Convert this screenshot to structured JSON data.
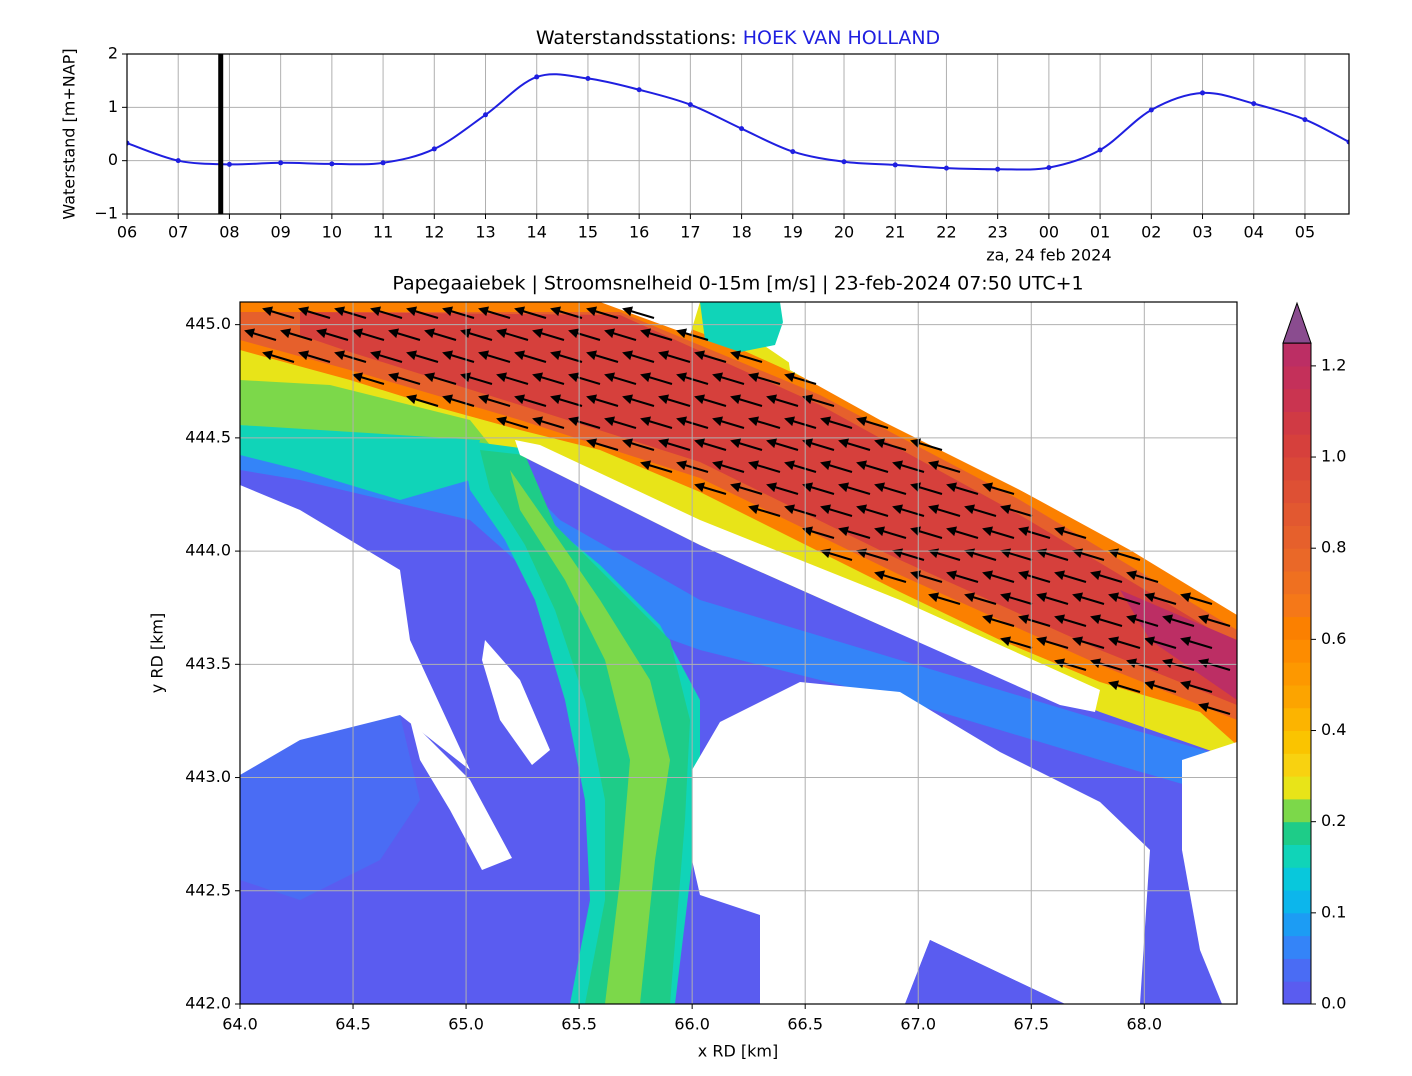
{
  "chart_data": [
    {
      "type": "line",
      "title": "Waterstandsstations:",
      "station": "HOEK VAN HOLLAND",
      "ylabel": "Waterstand [m+NAP]",
      "date_label": "za, 24 feb 2024",
      "color": "#1f1fe0",
      "current_time_x": 1.83,
      "x": [
        0,
        1,
        2,
        3,
        4,
        5,
        6,
        7,
        8,
        9,
        10,
        11,
        12,
        13,
        14,
        15,
        16,
        17,
        18,
        19,
        20,
        21,
        22,
        23,
        23.86
      ],
      "values": [
        0.33,
        0.0,
        -0.07,
        -0.04,
        -0.06,
        -0.04,
        0.22,
        0.86,
        1.57,
        1.54,
        1.33,
        1.05,
        0.6,
        0.17,
        -0.02,
        -0.08,
        -0.14,
        -0.16,
        -0.13,
        0.2,
        0.95,
        1.27,
        1.07,
        0.77,
        0.35
      ],
      "xlim": [
        0,
        23.86
      ],
      "xticks": [
        {
          "value": 0,
          "label": "06"
        },
        {
          "value": 1,
          "label": "07"
        },
        {
          "value": 2,
          "label": "08"
        },
        {
          "value": 3,
          "label": "09"
        },
        {
          "value": 4,
          "label": "10"
        },
        {
          "value": 5,
          "label": "11"
        },
        {
          "value": 6,
          "label": "12"
        },
        {
          "value": 7,
          "label": "13"
        },
        {
          "value": 8,
          "label": "14"
        },
        {
          "value": 9,
          "label": "15"
        },
        {
          "value": 10,
          "label": "16"
        },
        {
          "value": 11,
          "label": "17"
        },
        {
          "value": 12,
          "label": "18"
        },
        {
          "value": 13,
          "label": "19"
        },
        {
          "value": 14,
          "label": "20"
        },
        {
          "value": 15,
          "label": "21"
        },
        {
          "value": 16,
          "label": "22"
        },
        {
          "value": 17,
          "label": "23"
        },
        {
          "value": 18,
          "label": "00"
        },
        {
          "value": 19,
          "label": "01"
        },
        {
          "value": 20,
          "label": "02"
        },
        {
          "value": 21,
          "label": "03"
        },
        {
          "value": 22,
          "label": "04"
        },
        {
          "value": 23,
          "label": "05"
        }
      ],
      "ylim": [
        -1,
        2
      ],
      "yticks": [
        {
          "value": -1,
          "label": "−1"
        },
        0,
        1,
        2
      ],
      "grid": true
    },
    {
      "type": "contour",
      "title": "Papegaaiebek | Stroomsnelheid 0-15m [m/s] | 23-feb-2024 07:50 UTC+1",
      "xlabel": "x RD [km]",
      "ylabel": "y RD [km]",
      "xlim": [
        64,
        68.41
      ],
      "xticks": [
        {
          "value": 64,
          "label": "64.0"
        },
        {
          "value": 64.5,
          "label": "64.5"
        },
        {
          "value": 65,
          "label": "65.0"
        },
        {
          "value": 65.5,
          "label": "65.5"
        },
        {
          "value": 66,
          "label": "66.0"
        },
        {
          "value": 66.5,
          "label": "66.5"
        },
        {
          "value": 67,
          "label": "67.0"
        },
        {
          "value": 67.5,
          "label": "67.5"
        },
        {
          "value": 68,
          "label": "68.0"
        }
      ],
      "ylim": [
        442,
        445.1
      ],
      "yticks": [
        {
          "value": 442,
          "label": "442.0"
        },
        {
          "value": 442.5,
          "label": "442.5"
        },
        {
          "value": 443,
          "label": "443.0"
        },
        {
          "value": 443.5,
          "label": "443.5"
        },
        {
          "value": 444,
          "label": "444.0"
        },
        {
          "value": 444.5,
          "label": "444.5"
        },
        {
          "value": 445,
          "label": "445.0"
        }
      ],
      "grid": true,
      "colorbar": {
        "levels": [
          0,
          0.025,
          0.05,
          0.075,
          0.1,
          0.125,
          0.15,
          0.175,
          0.2,
          0.25,
          0.3,
          0.35,
          0.4,
          0.45,
          0.5,
          0.55,
          0.6,
          0.65,
          0.7,
          0.75,
          0.8,
          0.85,
          0.9,
          0.95,
          1.0,
          1.05,
          1.1,
          1.15,
          1.2,
          1.25
        ],
        "colors": [
          "#5a5cf0",
          "#4a6cf4",
          "#3484f8",
          "#1c9cf4",
          "#0cb6ec",
          "#08c8dc",
          "#10d4b8",
          "#1ecc88",
          "#7cd84a",
          "#e8e418",
          "#f8d210",
          "#fac400",
          "#fcb400",
          "#fca400",
          "#fd9800",
          "#fd8c00",
          "#fb8000",
          "#f57818",
          "#ef7020",
          "#ea6828",
          "#e6602c",
          "#e25830",
          "#de5034",
          "#da4838",
          "#d6403c",
          "#d03a44",
          "#ca3450",
          "#c4305a",
          "#bc2e64"
        ],
        "extend_color": "#8a4c8f",
        "ticks": [
          {
            "value": 0,
            "label": "0.0"
          },
          0.1,
          0.2,
          0.4,
          0.6,
          0.8,
          {
            "value": 1,
            "label": "1.0"
          },
          1.2
        ]
      }
    }
  ]
}
